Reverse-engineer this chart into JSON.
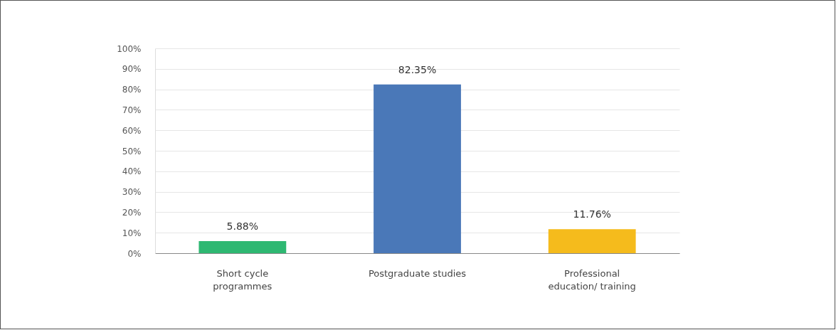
{
  "chart_data": {
    "type": "bar",
    "categories": [
      "Short cycle programmes",
      "Postgraduate studies",
      "Professional education/ training"
    ],
    "values": [
      5.88,
      82.35,
      11.76
    ],
    "colors": [
      "#2eb872",
      "#4a78b8",
      "#f5bb1c"
    ],
    "value_labels": [
      "5.88%",
      "82.35%",
      "11.76%"
    ],
    "ylim": [
      0,
      100
    ],
    "yticks": [
      {
        "value": 0,
        "label": "0%"
      },
      {
        "value": 10,
        "label": "10%"
      },
      {
        "value": 20,
        "label": "20%"
      },
      {
        "value": 30,
        "label": "30%"
      },
      {
        "value": 40,
        "label": "40%"
      },
      {
        "value": 50,
        "label": "50%"
      },
      {
        "value": 60,
        "label": "60%"
      },
      {
        "value": 70,
        "label": "70%"
      },
      {
        "value": 80,
        "label": "80%"
      },
      {
        "value": 90,
        "label": "90%"
      },
      {
        "value": 100,
        "label": "100%"
      }
    ],
    "grid": "y"
  }
}
